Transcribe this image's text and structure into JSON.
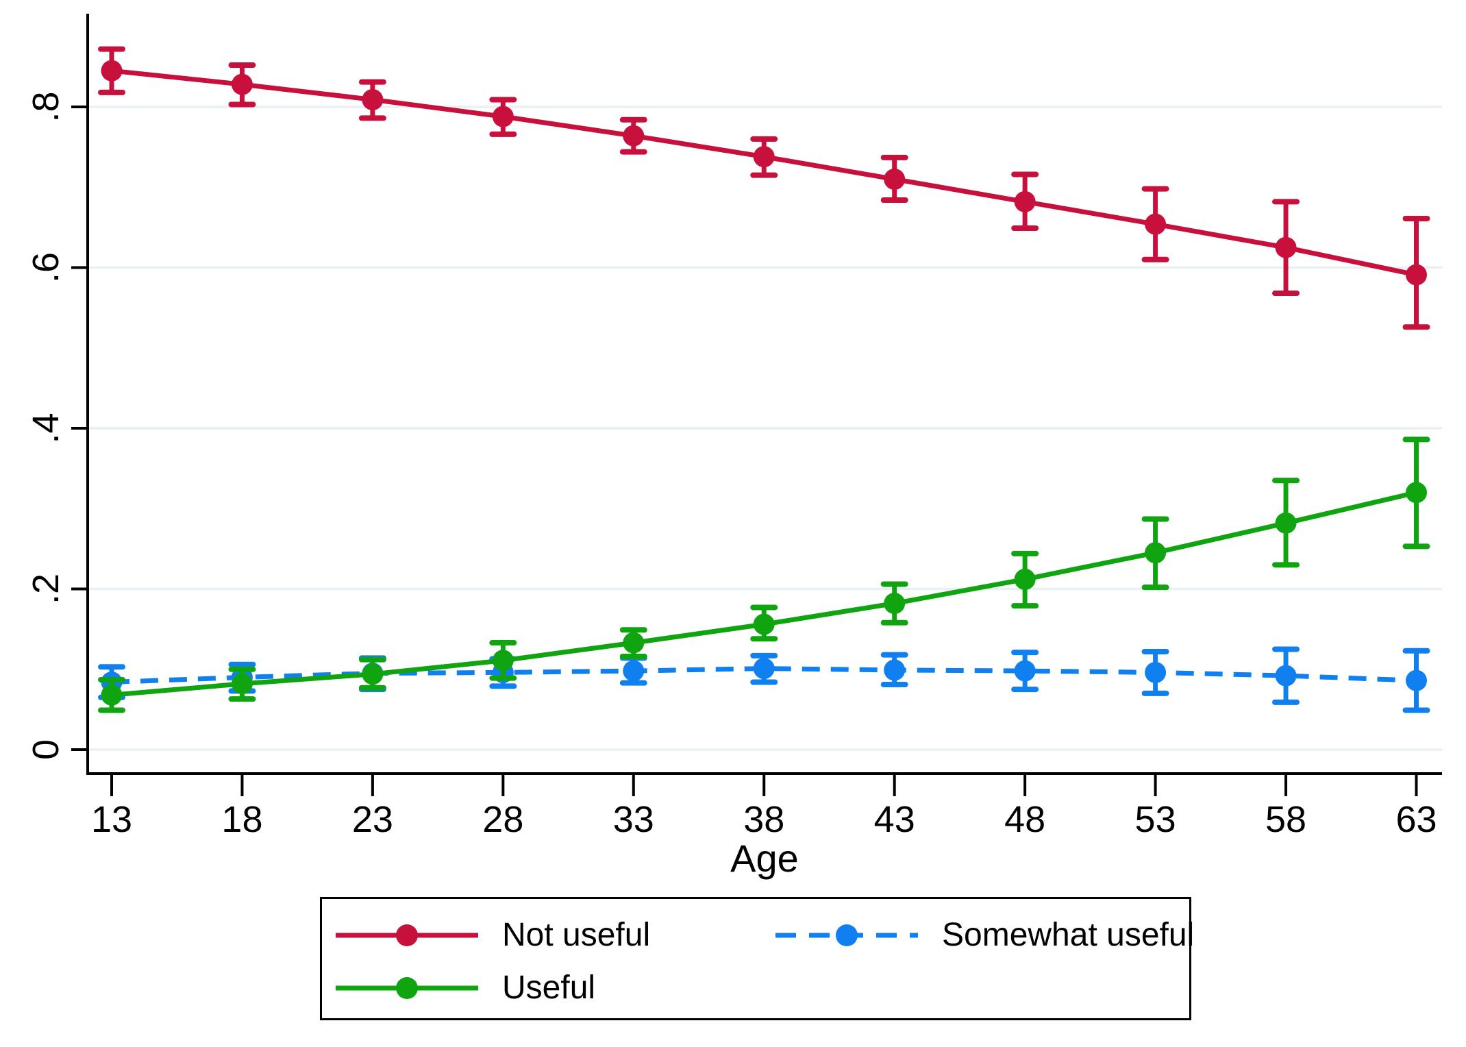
{
  "chart_data": {
    "type": "line",
    "title": "",
    "xlabel": "Age",
    "ylabel": "",
    "x": [
      13,
      18,
      23,
      28,
      33,
      38,
      43,
      48,
      53,
      58,
      63
    ],
    "xticks": [
      13,
      18,
      23,
      28,
      33,
      38,
      43,
      48,
      53,
      58,
      63
    ],
    "yticks": [
      0,
      0.2,
      0.4,
      0.6,
      0.8
    ],
    "ytick_labels": [
      "0",
      ".2",
      ".4",
      ".6",
      ".8"
    ],
    "xlim": [
      11.5,
      64.6
    ],
    "ylim": [
      -0.032,
      0.916
    ],
    "grid": "horizontal",
    "gridline_color": "#E8F0F3",
    "legend_position": "bottom-box",
    "error_bars": "95% CI",
    "series": [
      {
        "name": "Not useful",
        "color": "#C8103C",
        "line_style": "solid",
        "marker": "circle",
        "values": [
          0.845,
          0.828,
          0.809,
          0.788,
          0.764,
          0.738,
          0.71,
          0.682,
          0.654,
          0.625,
          0.591
        ],
        "ci_low": [
          0.818,
          0.803,
          0.786,
          0.766,
          0.744,
          0.715,
          0.684,
          0.649,
          0.61,
          0.568,
          0.526
        ],
        "ci_high": [
          0.872,
          0.852,
          0.831,
          0.809,
          0.784,
          0.76,
          0.737,
          0.716,
          0.698,
          0.682,
          0.661
        ]
      },
      {
        "name": "Somewhat useful",
        "color": "#1080F0",
        "line_style": "dashed",
        "marker": "circle",
        "values": [
          0.084,
          0.09,
          0.095,
          0.096,
          0.098,
          0.101,
          0.099,
          0.098,
          0.096,
          0.092,
          0.086
        ],
        "ci_low": [
          0.065,
          0.073,
          0.075,
          0.079,
          0.083,
          0.084,
          0.081,
          0.075,
          0.07,
          0.059,
          0.049
        ],
        "ci_high": [
          0.103,
          0.106,
          0.114,
          0.113,
          0.114,
          0.117,
          0.118,
          0.121,
          0.122,
          0.125,
          0.123
        ]
      },
      {
        "name": "Useful",
        "color": "#10A510",
        "line_style": "solid",
        "marker": "circle",
        "values": [
          0.068,
          0.082,
          0.094,
          0.111,
          0.133,
          0.156,
          0.182,
          0.212,
          0.245,
          0.282,
          0.32
        ],
        "ci_low": [
          0.049,
          0.063,
          0.077,
          0.089,
          0.116,
          0.138,
          0.158,
          0.179,
          0.202,
          0.23,
          0.253
        ],
        "ci_high": [
          0.087,
          0.1,
          0.112,
          0.133,
          0.149,
          0.177,
          0.206,
          0.244,
          0.287,
          0.335,
          0.386
        ]
      }
    ]
  }
}
